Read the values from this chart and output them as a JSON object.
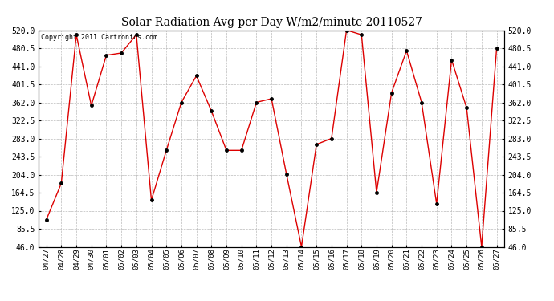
{
  "title": "Solar Radiation Avg per Day W/m2/minute 20110527",
  "copyright": "Copyright 2011 Cartronics.com",
  "dates": [
    "04/27",
    "04/28",
    "04/29",
    "04/30",
    "05/01",
    "05/02",
    "05/03",
    "05/04",
    "05/05",
    "05/06",
    "05/07",
    "05/08",
    "05/09",
    "05/10",
    "05/11",
    "05/12",
    "05/13",
    "05/14",
    "05/15",
    "05/16",
    "05/17",
    "05/18",
    "05/19",
    "05/20",
    "05/21",
    "05/22",
    "05/23",
    "05/24",
    "05/25",
    "05/26",
    "05/27"
  ],
  "values": [
    105,
    185,
    510,
    355,
    465,
    470,
    510,
    148,
    257,
    362,
    420,
    343,
    257,
    257,
    362,
    370,
    205,
    46,
    270,
    283,
    520,
    510,
    165,
    383,
    475,
    362,
    140,
    455,
    350,
    46,
    480
  ],
  "line_color": "#dd0000",
  "marker_color": "#000000",
  "bg_color": "#ffffff",
  "plot_bg_color": "#ffffff",
  "grid_color": "#bbbbbb",
  "ylim_min": 46.0,
  "ylim_max": 520.0,
  "yticks": [
    46.0,
    85.5,
    125.0,
    164.5,
    204.0,
    243.5,
    283.0,
    322.5,
    362.0,
    401.5,
    441.0,
    480.5,
    520.0
  ]
}
